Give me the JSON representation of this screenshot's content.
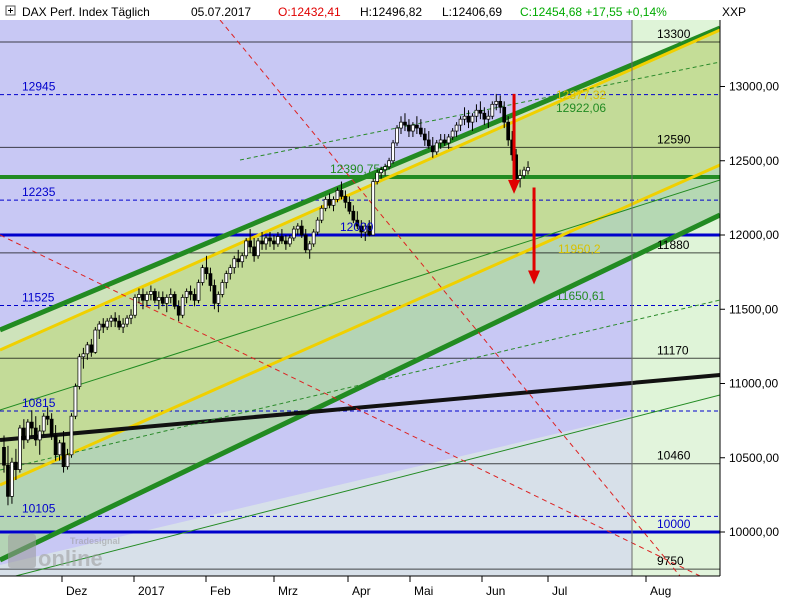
{
  "header": {
    "title": "DAX Perf. Index Täglich",
    "date": "05.07.2017",
    "open": "O:12432,41",
    "high": "H:12496,82",
    "low": "L:12406,69",
    "close": "C:12454,68 +17,55 +0,14%",
    "symbol": "XXP"
  },
  "watermark": {
    "top": "Tradesignal",
    "main": "online"
  },
  "colors": {
    "level_blue": "#0000cc",
    "level_black": "#000000",
    "support_green": "#228B22",
    "channel_yellow": "#f0d000",
    "arrow_red": "#e00000",
    "band_blue": "#c8c8f4",
    "band_green": "#dff4d8",
    "candle_up": "#ffffff",
    "candle_down": "#000000"
  },
  "chart_data": {
    "type": "candlestick",
    "title": "DAX Perf. Index Täglich",
    "xlabel": "",
    "ylabel": "",
    "x_ticks": [
      "Dez",
      "2017",
      "Feb",
      "Mrz",
      "Apr",
      "Mai",
      "Jun",
      "Jul",
      "Aug"
    ],
    "y_ticks": [
      "13000,00",
      "12500,00",
      "12000,00",
      "11500,00",
      "11000,00",
      "10500,00",
      "10000,00"
    ],
    "y_tick_values": [
      13000,
      12500,
      12000,
      11500,
      11000,
      10500,
      10000
    ],
    "ylim": [
      9720,
      13330
    ],
    "last_close": 12454.68,
    "horizontal_levels": [
      {
        "value": 13300,
        "label": "13300",
        "color": "black",
        "style": "solid"
      },
      {
        "value": 12945,
        "label": "12945",
        "color": "blue",
        "style": "dashed"
      },
      {
        "value": 12590,
        "label": "12590",
        "color": "black",
        "style": "solid"
      },
      {
        "value": 12390.75,
        "label": "12390,75",
        "color": "green",
        "style": "thick"
      },
      {
        "value": 12235,
        "label": "12235",
        "color": "blue",
        "style": "dashed"
      },
      {
        "value": 12000,
        "label": "12000",
        "color": "blue",
        "style": "thick"
      },
      {
        "value": 11880,
        "label": "11880",
        "color": "black",
        "style": "solid"
      },
      {
        "value": 11525,
        "label": "11525",
        "color": "blue",
        "style": "dashed"
      },
      {
        "value": 11170,
        "label": "11170",
        "color": "black",
        "style": "solid"
      },
      {
        "value": 10815,
        "label": "10815",
        "color": "blue",
        "style": "dashed"
      },
      {
        "value": 10460,
        "label": "10460",
        "color": "black",
        "style": "solid"
      },
      {
        "value": 10105,
        "label": "10105",
        "color": "blue",
        "style": "dashed"
      },
      {
        "value": 10000,
        "label": "10000",
        "color": "blue",
        "style": "thick"
      },
      {
        "value": 9750,
        "label": "9750",
        "color": "black",
        "style": "solid"
      }
    ],
    "annotations": [
      "12877,32",
      "12922,06",
      "11950,2",
      "11650,61"
    ],
    "targets": [
      {
        "from": 12950,
        "to": 12290
      },
      {
        "from": 12320,
        "to": 11680
      }
    ],
    "candles": [
      {
        "o": 10570,
        "h": 10650,
        "l": 10400,
        "c": 10450
      },
      {
        "o": 10450,
        "h": 10580,
        "l": 10180,
        "c": 10240
      },
      {
        "o": 10240,
        "h": 10500,
        "l": 10190,
        "c": 10470
      },
      {
        "o": 10470,
        "h": 10560,
        "l": 10350,
        "c": 10420
      },
      {
        "o": 10420,
        "h": 10720,
        "l": 10400,
        "c": 10700
      },
      {
        "o": 10700,
        "h": 10760,
        "l": 10560,
        "c": 10620
      },
      {
        "o": 10620,
        "h": 10760,
        "l": 10600,
        "c": 10740
      },
      {
        "o": 10740,
        "h": 10820,
        "l": 10640,
        "c": 10700
      },
      {
        "o": 10700,
        "h": 10780,
        "l": 10580,
        "c": 10620
      },
      {
        "o": 10620,
        "h": 10720,
        "l": 10520,
        "c": 10680
      },
      {
        "o": 10680,
        "h": 10800,
        "l": 10650,
        "c": 10780
      },
      {
        "o": 10780,
        "h": 10840,
        "l": 10720,
        "c": 10760
      },
      {
        "o": 10760,
        "h": 10800,
        "l": 10620,
        "c": 10650
      },
      {
        "o": 10650,
        "h": 10720,
        "l": 10480,
        "c": 10520
      },
      {
        "o": 10520,
        "h": 10620,
        "l": 10480,
        "c": 10600
      },
      {
        "o": 10600,
        "h": 10680,
        "l": 10400,
        "c": 10440
      },
      {
        "o": 10440,
        "h": 10560,
        "l": 10420,
        "c": 10520
      },
      {
        "o": 10520,
        "h": 10800,
        "l": 10500,
        "c": 10780
      },
      {
        "o": 10780,
        "h": 11000,
        "l": 10760,
        "c": 10980
      },
      {
        "o": 10980,
        "h": 11200,
        "l": 10960,
        "c": 11180
      },
      {
        "o": 11180,
        "h": 11240,
        "l": 11100,
        "c": 11200
      },
      {
        "o": 11200,
        "h": 11280,
        "l": 11160,
        "c": 11260
      },
      {
        "o": 11260,
        "h": 11300,
        "l": 11180,
        "c": 11210
      },
      {
        "o": 11210,
        "h": 11380,
        "l": 11200,
        "c": 11360
      },
      {
        "o": 11360,
        "h": 11420,
        "l": 11300,
        "c": 11400
      },
      {
        "o": 11400,
        "h": 11440,
        "l": 11340,
        "c": 11380
      },
      {
        "o": 11380,
        "h": 11440,
        "l": 11360,
        "c": 11420
      },
      {
        "o": 11420,
        "h": 11460,
        "l": 11380,
        "c": 11440
      },
      {
        "o": 11440,
        "h": 11480,
        "l": 11380,
        "c": 11420
      },
      {
        "o": 11420,
        "h": 11460,
        "l": 11360,
        "c": 11380
      },
      {
        "o": 11380,
        "h": 11440,
        "l": 11340,
        "c": 11400
      },
      {
        "o": 11400,
        "h": 11460,
        "l": 11380,
        "c": 11440
      },
      {
        "o": 11440,
        "h": 11500,
        "l": 11400,
        "c": 11460
      },
      {
        "o": 11460,
        "h": 11600,
        "l": 11440,
        "c": 11580
      },
      {
        "o": 11580,
        "h": 11640,
        "l": 11540,
        "c": 11600
      },
      {
        "o": 11600,
        "h": 11640,
        "l": 11500,
        "c": 11560
      },
      {
        "o": 11560,
        "h": 11620,
        "l": 11520,
        "c": 11600
      },
      {
        "o": 11600,
        "h": 11660,
        "l": 11560,
        "c": 11620
      },
      {
        "o": 11620,
        "h": 11640,
        "l": 11540,
        "c": 11560
      },
      {
        "o": 11560,
        "h": 11620,
        "l": 11500,
        "c": 11580
      },
      {
        "o": 11580,
        "h": 11620,
        "l": 11520,
        "c": 11540
      },
      {
        "o": 11540,
        "h": 11600,
        "l": 11480,
        "c": 11580
      },
      {
        "o": 11580,
        "h": 11640,
        "l": 11540,
        "c": 11600
      },
      {
        "o": 11600,
        "h": 11620,
        "l": 11500,
        "c": 11520
      },
      {
        "o": 11520,
        "h": 11560,
        "l": 11420,
        "c": 11460
      },
      {
        "o": 11460,
        "h": 11600,
        "l": 11440,
        "c": 11580
      },
      {
        "o": 11580,
        "h": 11640,
        "l": 11540,
        "c": 11620
      },
      {
        "o": 11620,
        "h": 11660,
        "l": 11560,
        "c": 11600
      },
      {
        "o": 11600,
        "h": 11640,
        "l": 11520,
        "c": 11560
      },
      {
        "o": 11560,
        "h": 11700,
        "l": 11540,
        "c": 11680
      },
      {
        "o": 11680,
        "h": 11800,
        "l": 11660,
        "c": 11780
      },
      {
        "o": 11780,
        "h": 11860,
        "l": 11700,
        "c": 11740
      },
      {
        "o": 11740,
        "h": 11780,
        "l": 11620,
        "c": 11660
      },
      {
        "o": 11660,
        "h": 11700,
        "l": 11500,
        "c": 11540
      },
      {
        "o": 11540,
        "h": 11620,
        "l": 11480,
        "c": 11600
      },
      {
        "o": 11600,
        "h": 11700,
        "l": 11580,
        "c": 11680
      },
      {
        "o": 11680,
        "h": 11760,
        "l": 11640,
        "c": 11740
      },
      {
        "o": 11740,
        "h": 11800,
        "l": 11700,
        "c": 11780
      },
      {
        "o": 11780,
        "h": 11860,
        "l": 11740,
        "c": 11840
      },
      {
        "o": 11840,
        "h": 11900,
        "l": 11780,
        "c": 11820
      },
      {
        "o": 11820,
        "h": 11880,
        "l": 11780,
        "c": 11860
      },
      {
        "o": 11860,
        "h": 11980,
        "l": 11840,
        "c": 11960
      },
      {
        "o": 11960,
        "h": 12040,
        "l": 11880,
        "c": 11920
      },
      {
        "o": 11920,
        "h": 11980,
        "l": 11820,
        "c": 11860
      },
      {
        "o": 11860,
        "h": 11980,
        "l": 11840,
        "c": 11960
      },
      {
        "o": 11960,
        "h": 12020,
        "l": 11900,
        "c": 11940
      },
      {
        "o": 11940,
        "h": 12000,
        "l": 11900,
        "c": 11980
      },
      {
        "o": 11980,
        "h": 12020,
        "l": 11920,
        "c": 11960
      },
      {
        "o": 11960,
        "h": 12000,
        "l": 11900,
        "c": 11940
      },
      {
        "o": 11940,
        "h": 12020,
        "l": 11920,
        "c": 11990
      },
      {
        "o": 11990,
        "h": 12040,
        "l": 11940,
        "c": 11960
      },
      {
        "o": 11960,
        "h": 12000,
        "l": 11900,
        "c": 11940
      },
      {
        "o": 11940,
        "h": 12000,
        "l": 11920,
        "c": 11980
      },
      {
        "o": 11980,
        "h": 12060,
        "l": 11960,
        "c": 12040
      },
      {
        "o": 12040,
        "h": 12080,
        "l": 12000,
        "c": 12060
      },
      {
        "o": 12060,
        "h": 12100,
        "l": 11980,
        "c": 12000
      },
      {
        "o": 12000,
        "h": 12040,
        "l": 11880,
        "c": 11900
      },
      {
        "o": 11900,
        "h": 11960,
        "l": 11840,
        "c": 11940
      },
      {
        "o": 11940,
        "h": 12040,
        "l": 11920,
        "c": 12020
      },
      {
        "o": 12020,
        "h": 12120,
        "l": 12000,
        "c": 12100
      },
      {
        "o": 12100,
        "h": 12200,
        "l": 12080,
        "c": 12180
      },
      {
        "o": 12180,
        "h": 12260,
        "l": 12160,
        "c": 12240
      },
      {
        "o": 12240,
        "h": 12280,
        "l": 12180,
        "c": 12200
      },
      {
        "o": 12200,
        "h": 12260,
        "l": 12160,
        "c": 12240
      },
      {
        "o": 12240,
        "h": 12320,
        "l": 12220,
        "c": 12300
      },
      {
        "o": 12300,
        "h": 12360,
        "l": 12240,
        "c": 12260
      },
      {
        "o": 12260,
        "h": 12300,
        "l": 12180,
        "c": 12220
      },
      {
        "o": 12220,
        "h": 12260,
        "l": 12140,
        "c": 12160
      },
      {
        "o": 12160,
        "h": 12200,
        "l": 12080,
        "c": 12100
      },
      {
        "o": 12100,
        "h": 12160,
        "l": 12040,
        "c": 12060
      },
      {
        "o": 12060,
        "h": 12100,
        "l": 11980,
        "c": 12020
      },
      {
        "o": 12020,
        "h": 12080,
        "l": 11960,
        "c": 12060
      },
      {
        "o": 12060,
        "h": 12100,
        "l": 11990,
        "c": 12000
      },
      {
        "o": 12000,
        "h": 12380,
        "l": 12000,
        "c": 12360
      },
      {
        "o": 12360,
        "h": 12440,
        "l": 12340,
        "c": 12420
      },
      {
        "o": 12420,
        "h": 12460,
        "l": 12380,
        "c": 12440
      },
      {
        "o": 12440,
        "h": 12480,
        "l": 12400,
        "c": 12460
      },
      {
        "o": 12460,
        "h": 12520,
        "l": 12440,
        "c": 12500
      },
      {
        "o": 12500,
        "h": 12640,
        "l": 12480,
        "c": 12620
      },
      {
        "o": 12620,
        "h": 12740,
        "l": 12600,
        "c": 12720
      },
      {
        "o": 12720,
        "h": 12800,
        "l": 12680,
        "c": 12760
      },
      {
        "o": 12760,
        "h": 12820,
        "l": 12700,
        "c": 12740
      },
      {
        "o": 12740,
        "h": 12780,
        "l": 12660,
        "c": 12700
      },
      {
        "o": 12700,
        "h": 12760,
        "l": 12660,
        "c": 12740
      },
      {
        "o": 12740,
        "h": 12800,
        "l": 12680,
        "c": 12720
      },
      {
        "o": 12720,
        "h": 12780,
        "l": 12660,
        "c": 12680
      },
      {
        "o": 12680,
        "h": 12720,
        "l": 12600,
        "c": 12640
      },
      {
        "o": 12640,
        "h": 12700,
        "l": 12580,
        "c": 12600
      },
      {
        "o": 12600,
        "h": 12660,
        "l": 12520,
        "c": 12560
      },
      {
        "o": 12560,
        "h": 12640,
        "l": 12540,
        "c": 12620
      },
      {
        "o": 12620,
        "h": 12680,
        "l": 12580,
        "c": 12640
      },
      {
        "o": 12640,
        "h": 12680,
        "l": 12600,
        "c": 12620
      },
      {
        "o": 12620,
        "h": 12680,
        "l": 12580,
        "c": 12660
      },
      {
        "o": 12660,
        "h": 12720,
        "l": 12640,
        "c": 12700
      },
      {
        "o": 12700,
        "h": 12760,
        "l": 12660,
        "c": 12740
      },
      {
        "o": 12740,
        "h": 12800,
        "l": 12700,
        "c": 12780
      },
      {
        "o": 12780,
        "h": 12860,
        "l": 12740,
        "c": 12800
      },
      {
        "o": 12800,
        "h": 12840,
        "l": 12720,
        "c": 12760
      },
      {
        "o": 12760,
        "h": 12820,
        "l": 12700,
        "c": 12800
      },
      {
        "o": 12800,
        "h": 12880,
        "l": 12760,
        "c": 12840
      },
      {
        "o": 12840,
        "h": 12900,
        "l": 12780,
        "c": 12820
      },
      {
        "o": 12820,
        "h": 12860,
        "l": 12740,
        "c": 12780
      },
      {
        "o": 12780,
        "h": 12840,
        "l": 12720,
        "c": 12800
      },
      {
        "o": 12800,
        "h": 12900,
        "l": 12780,
        "c": 12880
      },
      {
        "o": 12880,
        "h": 12950,
        "l": 12840,
        "c": 12900
      },
      {
        "o": 12900,
        "h": 12940,
        "l": 12820,
        "c": 12860
      },
      {
        "o": 12860,
        "h": 12900,
        "l": 12720,
        "c": 12760
      },
      {
        "o": 12760,
        "h": 12800,
        "l": 12600,
        "c": 12640
      },
      {
        "o": 12640,
        "h": 12700,
        "l": 12500,
        "c": 12540
      },
      {
        "o": 12540,
        "h": 12580,
        "l": 12350,
        "c": 12380
      },
      {
        "o": 12380,
        "h": 12440,
        "l": 12320,
        "c": 12400
      },
      {
        "o": 12400,
        "h": 12460,
        "l": 12380,
        "c": 12437
      },
      {
        "o": 12432.41,
        "h": 12496.82,
        "l": 12406.69,
        "c": 12454.68
      }
    ]
  }
}
